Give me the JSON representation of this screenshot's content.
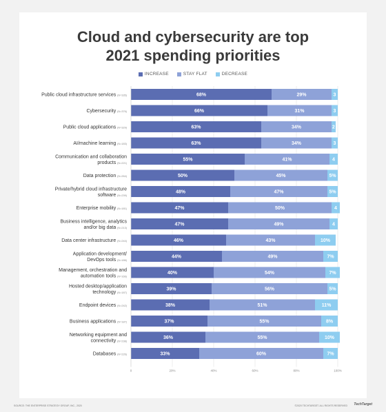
{
  "title_line1": "Cloud and cybersecurity are top",
  "title_line2": "2021 spending priorities",
  "legend": [
    {
      "label": "INCREASE",
      "color": "#5b6db2"
    },
    {
      "label": "STAY FLAT",
      "color": "#8ea2d8"
    },
    {
      "label": "DECREASE",
      "color": "#8ecdf0"
    }
  ],
  "footer": {
    "source": "SOURCE: THE ENTERPRISE STRATEGY GROUP, INC., 2020",
    "copyright": "©2020 TECHTARGET. ALL RIGHTS RESERVED",
    "brand": "TechTarget"
  },
  "chart_data": {
    "type": "bar",
    "orientation": "horizontal",
    "stacked": true,
    "xlim": [
      0,
      100
    ],
    "x_ticks": [
      "0",
      "20%",
      "40%",
      "60%",
      "80%",
      "100%"
    ],
    "grid": true,
    "legend_position": "top",
    "series_names": [
      "INCREASE",
      "STAY FLAT",
      "DECREASE"
    ],
    "categories": [
      {
        "label": [
          "Public cloud infrastructure services"
        ],
        "n": "(N=335)",
        "values": [
          68,
          29,
          3
        ],
        "labels": [
          "68%",
          "29%",
          "3"
        ]
      },
      {
        "label": [
          "Cybersecurity"
        ],
        "n": "(N=376)",
        "values": [
          66,
          31,
          3
        ],
        "labels": [
          "66%",
          "31%",
          "3"
        ]
      },
      {
        "label": [
          "Public cloud applications"
        ],
        "n": "(N=329)",
        "values": [
          63,
          34,
          2
        ],
        "labels": [
          "63%",
          "34%",
          "2"
        ]
      },
      {
        "label": [
          "AI/machine learning"
        ],
        "n": "(N=183)",
        "values": [
          63,
          34,
          3
        ],
        "labels": [
          "63%",
          "34%",
          "3"
        ]
      },
      {
        "label": [
          "Communication and collaboration",
          "products"
        ],
        "n": "(N=221)",
        "values": [
          55,
          41,
          4
        ],
        "labels": [
          "55%",
          "41%",
          "4"
        ]
      },
      {
        "label": [
          "Data protection"
        ],
        "n": "(N=264)",
        "values": [
          50,
          45,
          5
        ],
        "labels": [
          "50%",
          "45%",
          "5%"
        ]
      },
      {
        "label": [
          "Private/hybrid cloud infrastructure",
          "software"
        ],
        "n": "(N=239)",
        "values": [
          48,
          47,
          5
        ],
        "labels": [
          "48%",
          "47%",
          "5%"
        ]
      },
      {
        "label": [
          "Enterprise mobility"
        ],
        "n": "(N=181)",
        "values": [
          47,
          50,
          4
        ],
        "labels": [
          "47%",
          "50%",
          "4"
        ]
      },
      {
        "label": [
          "Business intelligence, analytics",
          "and/or big data"
        ],
        "n": "(N=213)",
        "values": [
          47,
          49,
          4
        ],
        "labels": [
          "47%",
          "49%",
          "4"
        ]
      },
      {
        "label": [
          "Data center infrastructure"
        ],
        "n": "(N=244)",
        "values": [
          46,
          43,
          10
        ],
        "labels": [
          "46%",
          "43%",
          "10%"
        ]
      },
      {
        "label": [
          "Application development/",
          "DevOps tools"
        ],
        "n": "(N=186)",
        "values": [
          44,
          49,
          7
        ],
        "labels": [
          "44%",
          "49%",
          "7%"
        ]
      },
      {
        "label": [
          "Management, orchestration and",
          "automation tools"
        ],
        "n": "(N=166)",
        "values": [
          40,
          54,
          7
        ],
        "labels": [
          "40%",
          "54%",
          "7%"
        ]
      },
      {
        "label": [
          "Hosted desktop/application",
          "technology"
        ],
        "n": "(N=187)",
        "values": [
          39,
          56,
          5
        ],
        "labels": [
          "39%",
          "56%",
          "5%"
        ]
      },
      {
        "label": [
          "Endpoint devices"
        ],
        "n": "(N=242)",
        "values": [
          38,
          51,
          11
        ],
        "labels": [
          "38%",
          "51%",
          "11%"
        ]
      },
      {
        "label": [
          "Business applications"
        ],
        "n": "(N=187)",
        "values": [
          37,
          55,
          8
        ],
        "labels": [
          "37%",
          "55%",
          "8%"
        ]
      },
      {
        "label": [
          "Networking equipment and",
          "connectivity"
        ],
        "n": "(N=238)",
        "values": [
          36,
          55,
          10
        ],
        "labels": [
          "36%",
          "55%",
          "10%"
        ]
      },
      {
        "label": [
          "Databases"
        ],
        "n": "(N=226)",
        "values": [
          33,
          60,
          7
        ],
        "labels": [
          "33%",
          "60%",
          "7%"
        ]
      }
    ]
  }
}
